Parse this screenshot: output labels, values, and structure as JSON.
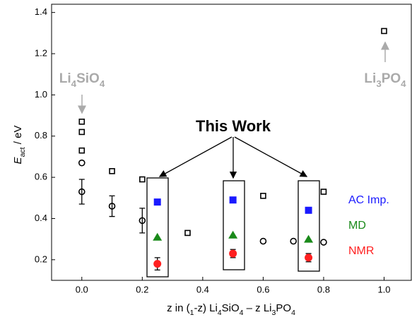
{
  "chart_data": {
    "type": "scatter",
    "x_label": "z in (1-z) Li4SiO4 – z Li3PO4",
    "y_label": "Eact / eV",
    "xlim": [
      -0.1,
      1.09
    ],
    "ylim": [
      0.1,
      1.44
    ],
    "xticks": [
      {
        "value": 0,
        "label": "0.0"
      },
      0.2,
      0.4,
      0.6,
      0.8,
      {
        "value": 1,
        "label": "1.0"
      }
    ],
    "yticks": [
      0.2,
      0.4,
      0.6,
      0.8,
      {
        "value": 1,
        "label": "1.0"
      },
      1.2,
      1.4
    ],
    "annotations": [
      "This Work",
      "Li4SiO4",
      "Li3PO4"
    ],
    "series": [
      {
        "marker": "open-square",
        "color": "#000000",
        "x": [
          0,
          0,
          0,
          0.1,
          0.2,
          0.35,
          0.6,
          0.8,
          1.0
        ],
        "values": [
          0.87,
          0.82,
          0.73,
          0.63,
          0.59,
          0.33,
          0.51,
          0.53,
          1.31
        ]
      },
      {
        "marker": "open-circle",
        "color": "#000000",
        "x": [
          0,
          0,
          0.1,
          0.2,
          0.6,
          0.7,
          0.8
        ],
        "values": [
          0.67,
          0.53,
          0.46,
          0.39,
          0.29,
          0.29,
          0.285
        ],
        "errors": [
          null,
          0.06,
          0.05,
          0.06,
          null,
          null,
          null
        ]
      },
      {
        "name": "AC Imp.",
        "marker": "square",
        "color": "#1a1aff",
        "x": [
          0.25,
          0.5,
          0.75
        ],
        "values": [
          0.48,
          0.49,
          0.44
        ]
      },
      {
        "name": "MD",
        "marker": "triangle",
        "color": "#1a8a1a",
        "x": [
          0.25,
          0.5,
          0.75
        ],
        "values": [
          0.31,
          0.32,
          0.3
        ]
      },
      {
        "name": "NMR",
        "marker": "circle",
        "color": "#ff2020",
        "x": [
          0.25,
          0.5,
          0.75
        ],
        "values": [
          0.18,
          0.23,
          0.21
        ],
        "errors": [
          0.03,
          0.02,
          0.02
        ]
      }
    ]
  }
}
